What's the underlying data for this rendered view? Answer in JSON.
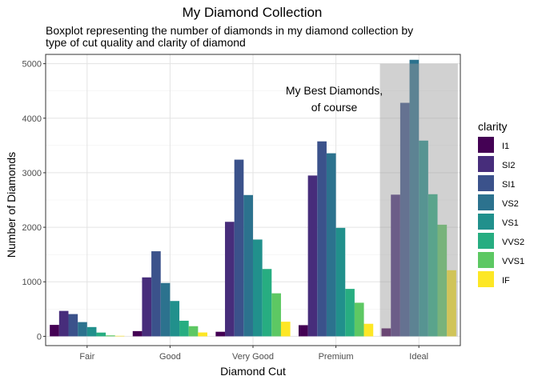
{
  "chart_data": {
    "type": "bar",
    "title": "My Diamond Collection",
    "subtitle": "Boxplot representing the number of diamonds in my diamond collection by type of cut quality and clarity of diamond",
    "subtitle_lines": [
      "Boxplot representing the number of diamonds in my diamond collection by",
      "type of cut quality and clarity of diamond"
    ],
    "xlabel": "Diamond Cut",
    "ylabel": "Number of Diamonds",
    "categories": [
      "Fair",
      "Good",
      "Very Good",
      "Premium",
      "Ideal"
    ],
    "ylim": [
      -170,
      5170
    ],
    "yticks": [
      0,
      1000,
      2000,
      3000,
      4000,
      5000
    ],
    "grid": true,
    "legend_title": "clarity",
    "legend_position": "right",
    "series": [
      {
        "name": "I1",
        "color": "#440154",
        "values": [
          210,
          96,
          84,
          205,
          146
        ]
      },
      {
        "name": "SI2",
        "color": "#472D7B",
        "values": [
          466,
          1081,
          2100,
          2949,
          2598
        ]
      },
      {
        "name": "SI1",
        "color": "#3B528B",
        "values": [
          408,
          1560,
          3240,
          3575,
          4282
        ]
      },
      {
        "name": "VS2",
        "color": "#2C728E",
        "values": [
          261,
          978,
          2591,
          3357,
          5071
        ]
      },
      {
        "name": "VS1",
        "color": "#21908C",
        "values": [
          170,
          648,
          1775,
          1989,
          3589
        ]
      },
      {
        "name": "VVS2",
        "color": "#27AD81",
        "values": [
          69,
          286,
          1235,
          870,
          2606
        ]
      },
      {
        "name": "VVS1",
        "color": "#5DC863",
        "values": [
          17,
          186,
          789,
          616,
          2047
        ]
      },
      {
        "name": "IF",
        "color": "#FDE725",
        "values": [
          9,
          71,
          268,
          230,
          1212
        ]
      }
    ],
    "annotation": {
      "lines": [
        "My Best Diamonds,",
        "of course"
      ],
      "highlight_category": "Ideal",
      "highlight_range": [
        0,
        5000
      ]
    }
  }
}
